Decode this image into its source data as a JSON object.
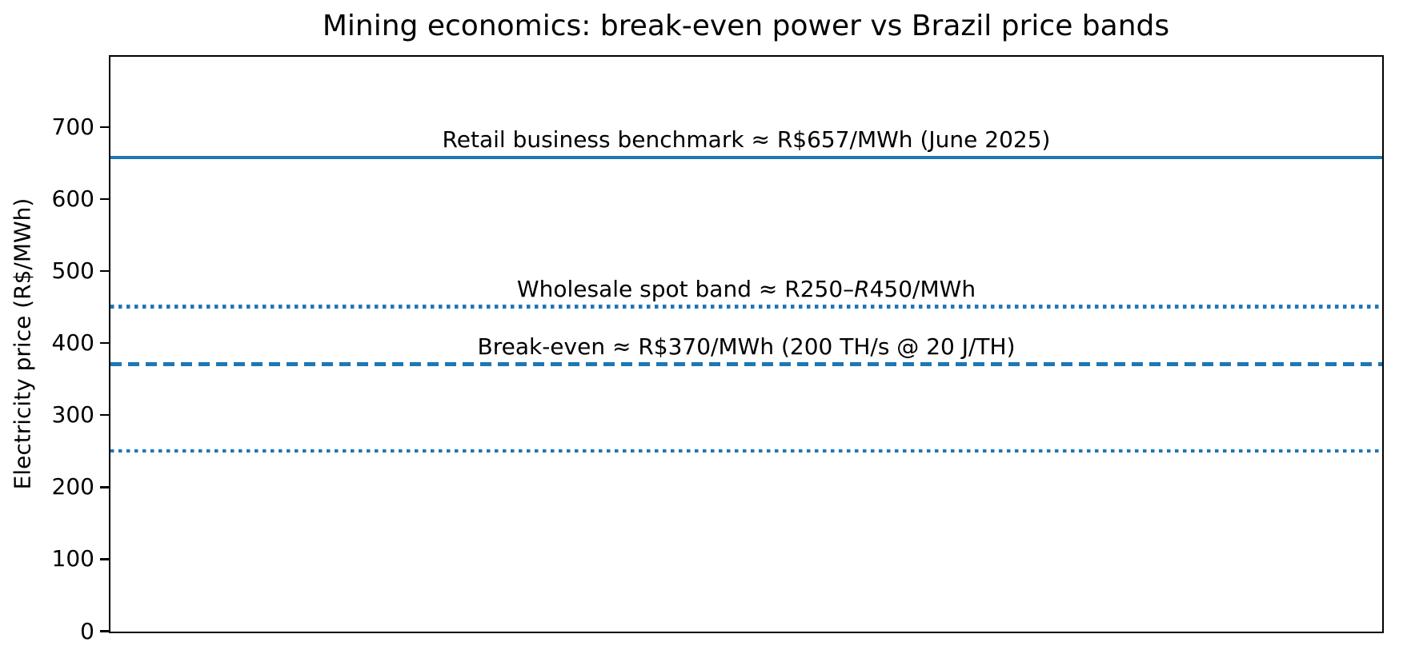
{
  "chart_data": {
    "type": "line",
    "title": "Mining economics: break-even power vs Brazil price bands",
    "xlabel": "",
    "ylabel": "Electricity price (R$/MWh)",
    "ylim": [
      0,
      797
    ],
    "yticks": [
      0,
      100,
      200,
      300,
      400,
      500,
      600,
      700
    ],
    "xticks": [],
    "grid": false,
    "legend": "none",
    "background_color": "#ffffff",
    "axis_color": "#000000",
    "line_color": "#1f77b4",
    "hlines": [
      {
        "id": "retail-benchmark",
        "value": 657,
        "style": "solid",
        "label_parts": [
          {
            "text": "Retail business benchmark ≈ R$657/MWh (June 2025)",
            "italic": false
          }
        ]
      },
      {
        "id": "wholesale-band-upper",
        "value": 450,
        "style": "dotted",
        "label_parts": [
          {
            "text": "Wholesale spot band ≈ R250–",
            "italic": false
          },
          {
            "text": "R",
            "italic": true
          },
          {
            "text": "450/MWh",
            "italic": false
          }
        ]
      },
      {
        "id": "break-even",
        "value": 370,
        "style": "dashed",
        "label_parts": [
          {
            "text": "Break-even ≈ R$370/MWh (200 TH/s @ 20 J/TH)",
            "italic": false
          }
        ]
      },
      {
        "id": "wholesale-band-lower",
        "value": 250,
        "style": "dotted",
        "label_parts": []
      }
    ]
  }
}
